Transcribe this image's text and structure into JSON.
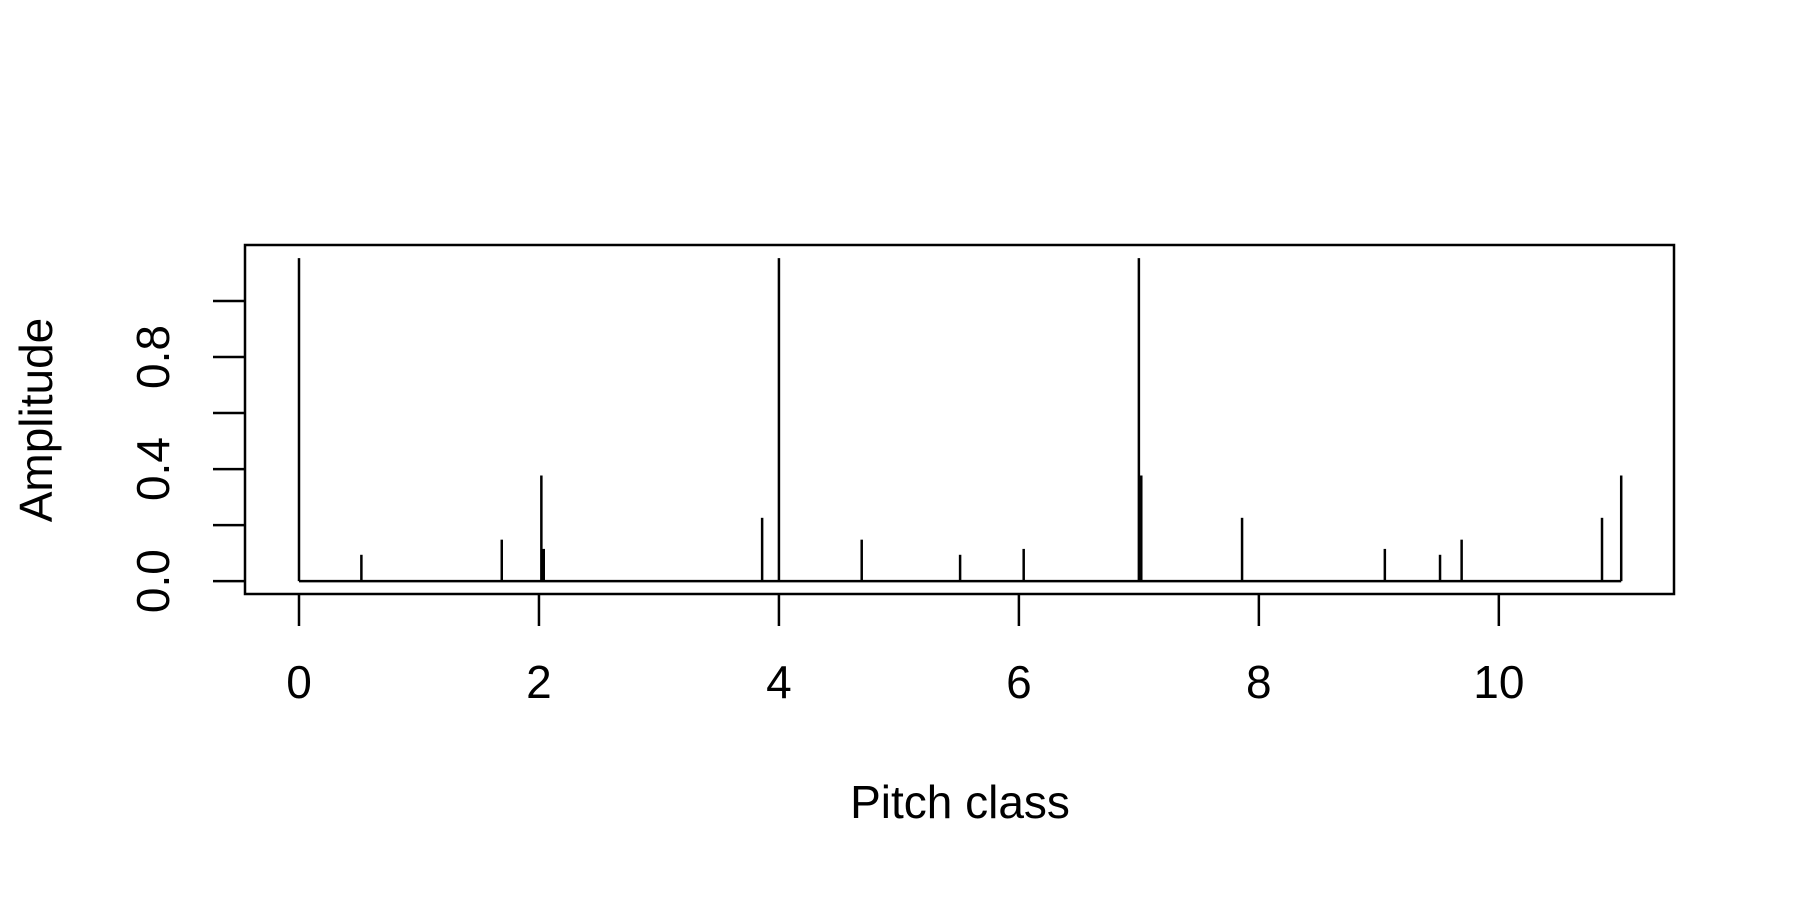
{
  "chart_data": {
    "type": "spike",
    "x_label": "Pitch class",
    "y_label": "Amplitude",
    "x": [
      0,
      0.52,
      1.69,
      2.02,
      2.04,
      3.86,
      4.0,
      4.69,
      5.51,
      6.04,
      7.0,
      7.02,
      7.86,
      9.05,
      9.51,
      9.69,
      10.86,
      11.02
    ],
    "values": [
      1.153,
      0.094,
      0.148,
      0.377,
      0.115,
      0.226,
      1.153,
      0.148,
      0.094,
      0.115,
      1.153,
      0.377,
      0.226,
      0.115,
      0.094,
      0.148,
      0.226,
      0.377
    ],
    "color": "#000000",
    "xlim": [
      -0.45,
      11.46
    ],
    "ylim": [
      -0.046,
      1.2
    ],
    "xticks": [
      0,
      2,
      4,
      6,
      8,
      10
    ],
    "yticks": [
      {
        "value": 0,
        "label": "0.0"
      },
      {
        "value": 0.4,
        "label": "0.4"
      },
      {
        "value": 0.8,
        "label": "0.8"
      }
    ],
    "yticks_unlabeled": [
      0.2,
      0.6,
      1.0
    ]
  }
}
